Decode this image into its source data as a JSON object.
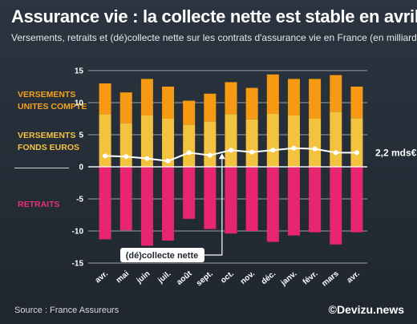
{
  "header": {
    "title": "Assurance vie : la collecte nette est stable en avril",
    "subtitle": "Versements, retraits et (dé)collecte nette sur les contrats d'assurance vie en France (en milliards €)"
  },
  "legend": {
    "uc_line1": "VERSEMENTS",
    "uc_line2": "UNITES COMPTE",
    "fe_line1": "VERSEMENTS",
    "fe_line2": "FONDS EUROS",
    "retraits": "RETRAITS"
  },
  "footer": {
    "source": "Source : France Assureurs",
    "brand": "©Devizu.news"
  },
  "colors": {
    "uc": "#f59a12",
    "fe": "#f3c23e",
    "retraits": "#e8266f",
    "net": "#ffffff",
    "grid": "#c9c9c9"
  },
  "chart_data": {
    "type": "bar",
    "title": "Assurance vie : la collecte nette est stable en avril",
    "subtitle": "Versements, retraits et (dé)collecte nette sur les contrats d'assurance vie en France (en milliards €)",
    "categories": [
      "avr.",
      "mai",
      "juin",
      "juil.",
      "août",
      "sept.",
      "oct.",
      "nov.",
      "déc.",
      "janv.",
      "févr.",
      "mars",
      "avr."
    ],
    "ylim": [
      -15,
      15
    ],
    "yticks": [
      15,
      10,
      5,
      0,
      -5,
      -10,
      -15
    ],
    "grid": true,
    "series": [
      {
        "name": "VERSEMENTS FONDS EUROS",
        "kind": "bar",
        "values": [
          8.2,
          6.8,
          8.0,
          7.5,
          6.6,
          7.1,
          8.2,
          7.4,
          8.3,
          8.0,
          7.5,
          8.6,
          7.6
        ]
      },
      {
        "name": "VERSEMENTS UNITES COMPTE",
        "kind": "bar",
        "values": [
          4.8,
          4.8,
          5.7,
          5.0,
          3.7,
          4.3,
          5.0,
          4.9,
          6.1,
          5.7,
          6.2,
          5.7,
          4.9
        ]
      },
      {
        "name": "RETRAITS",
        "kind": "bar",
        "values": [
          -11.3,
          -9.9,
          -12.3,
          -11.5,
          -8.1,
          -9.7,
          -10.4,
          -10.0,
          -11.7,
          -10.7,
          -10.2,
          -12.1,
          -10.2
        ]
      },
      {
        "name": "(dé)collecte nette",
        "kind": "line",
        "values": [
          1.7,
          1.6,
          1.3,
          0.9,
          2.2,
          1.8,
          2.6,
          2.3,
          2.6,
          2.9,
          2.8,
          2.2,
          2.2
        ]
      }
    ],
    "annotations": {
      "net_label": "(dé)collecte nette",
      "end_label": "2,2 mds€"
    }
  }
}
